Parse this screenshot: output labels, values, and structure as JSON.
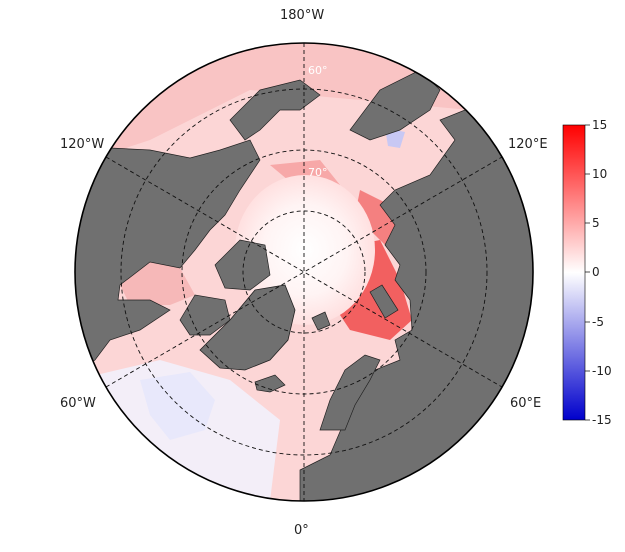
{
  "map": {
    "projection": "north polar stereographic",
    "longitude_labels": {
      "top": "180°W",
      "upper_left": "120°W",
      "upper_right": "120°E",
      "lower_left": "60°W",
      "lower_right": "60°E",
      "bottom": "0°"
    },
    "latitude_labels": [
      "60°",
      "70°"
    ],
    "land_color": "#707070",
    "graticule_style": "dashed"
  },
  "colorbar": {
    "ticks": [
      "15",
      "10",
      "5",
      "0",
      "-5",
      "-10",
      "-15"
    ],
    "range": [
      -15,
      15
    ],
    "colors": {
      "high": "#ff0000",
      "mid": "#ffffff",
      "low": "#0000cc"
    }
  }
}
